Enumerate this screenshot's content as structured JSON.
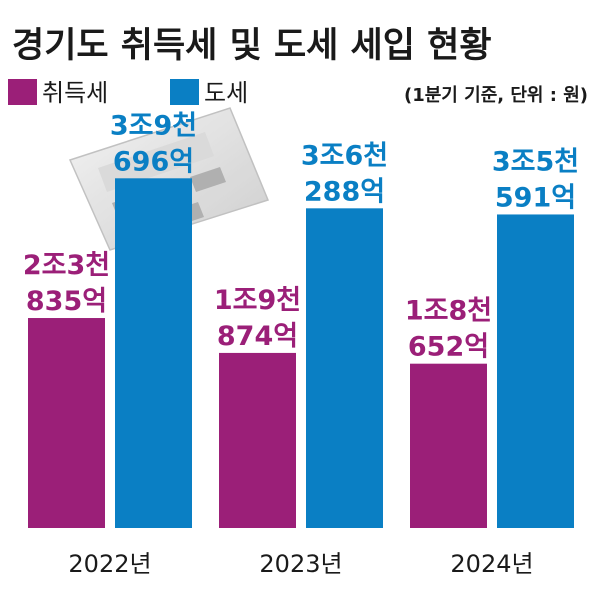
{
  "chart_data": {
    "type": "bar",
    "title": "경기도 취득세 및 도세 세입 현황",
    "unit_note": "(1분기 기준, 단위 : 원)",
    "categories": [
      "2022년",
      "2023년",
      "2024년"
    ],
    "series": [
      {
        "name": "취득세",
        "color": "#9b1f78",
        "values": [
          2383500000000,
          1987400000000,
          1865200000000
        ],
        "labels": [
          [
            "2조3천",
            "835억"
          ],
          [
            "1조9천",
            "874억"
          ],
          [
            "1조8천",
            "652억"
          ]
        ]
      },
      {
        "name": "도세",
        "color": "#0a7fc4",
        "values": [
          3969600000000,
          3628800000000,
          3559100000000
        ],
        "labels": [
          [
            "3조9천",
            "696억"
          ],
          [
            "3조6천",
            "288억"
          ],
          [
            "3조5천",
            "591억"
          ]
        ]
      }
    ],
    "grid": false,
    "legend_position": "top-left"
  }
}
